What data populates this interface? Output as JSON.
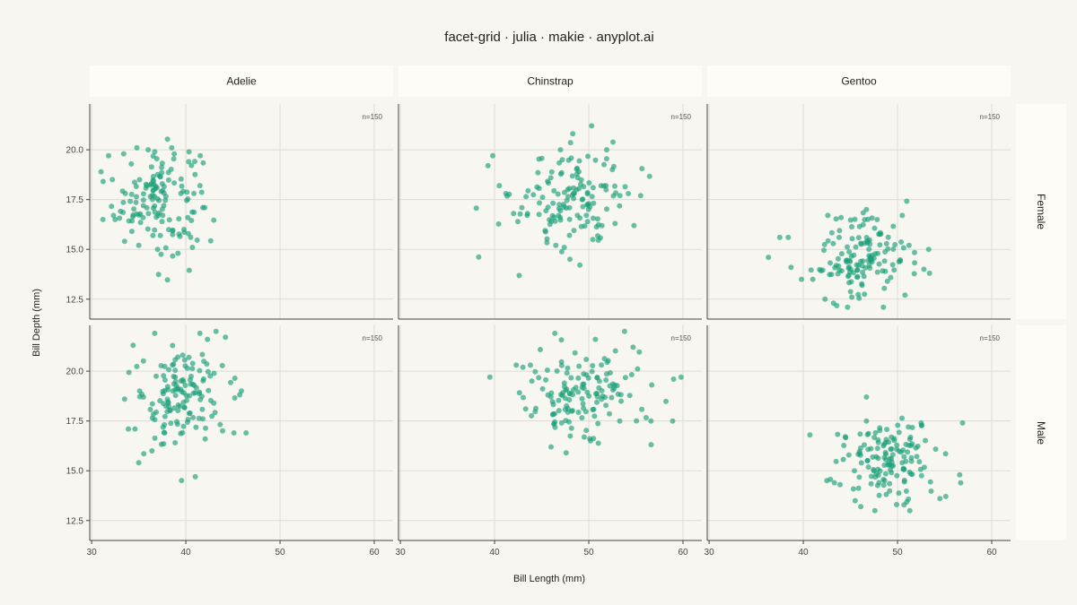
{
  "chart_data": {
    "type": "scatter",
    "title": "facet-grid · julia · makie · anyplot.ai",
    "xlabel": "Bill Length (mm)",
    "ylabel": "Bill Depth (mm)",
    "xlim": [
      29.8,
      62
    ],
    "ylim": [
      11.5,
      22.3
    ],
    "xticks": [
      30,
      40,
      50,
      60
    ],
    "yticks": [
      12.5,
      15.0,
      17.5,
      20.0
    ],
    "ytick_labels": [
      "12.5",
      "15.0",
      "17.5",
      "20.0"
    ],
    "grid": true,
    "point_color": "#1aa078",
    "columns": [
      "Adelie",
      "Chinstrap",
      "Gentoo"
    ],
    "rows": [
      "Female",
      "Male"
    ],
    "panels": [
      {
        "species": "Adelie",
        "sex": "Female",
        "n_label": "n=150",
        "center": [
          37.0,
          17.6
        ],
        "spread": [
          2.3,
          1.35
        ],
        "n": 150,
        "points": [
          [
            31.0,
            18.9
          ],
          [
            31.8,
            19.7
          ],
          [
            32.2,
            18.5
          ],
          [
            33.4,
            19.8
          ],
          [
            34.8,
            20.1
          ],
          [
            38.5,
            20.1
          ],
          [
            36.0,
            20.0
          ],
          [
            36.7,
            19.9
          ],
          [
            40.3,
            19.4
          ],
          [
            41.5,
            18.2
          ],
          [
            40.7,
            15.1
          ],
          [
            37.0,
            15.0
          ],
          [
            35.0,
            15.2
          ],
          [
            33.5,
            15.4
          ],
          [
            31.2,
            16.5
          ],
          [
            32.5,
            16.5
          ],
          [
            41.8,
            17.1
          ],
          [
            42.0,
            17.1
          ],
          [
            40.2,
            16.6
          ],
          [
            39.8,
            16.0
          ]
        ]
      },
      {
        "species": "Chinstrap",
        "sex": "Female",
        "n_label": "n=150",
        "center": [
          48.0,
          17.6
        ],
        "spread": [
          3.0,
          1.3
        ],
        "n": 150,
        "points": [
          [
            40.5,
            18.2
          ],
          [
            41.2,
            17.8
          ],
          [
            39.3,
            19.2
          ],
          [
            39.8,
            19.7
          ],
          [
            48.3,
            20.8
          ],
          [
            50.3,
            21.2
          ],
          [
            47.0,
            20.0
          ],
          [
            48.0,
            14.5
          ],
          [
            46.5,
            15.2
          ],
          [
            47.4,
            15.1
          ],
          [
            55.5,
            17.7
          ],
          [
            54.2,
            17.8
          ],
          [
            53.3,
            17.7
          ],
          [
            54.8,
            16.2
          ],
          [
            51.9,
            20.0
          ],
          [
            52.5,
            19.0
          ],
          [
            43.5,
            16.8
          ],
          [
            42.9,
            17.1
          ]
        ]
      },
      {
        "species": "Gentoo",
        "sex": "Female",
        "n_label": "n=150",
        "center": [
          46.5,
          14.6
        ],
        "spread": [
          2.4,
          1.1
        ],
        "n": 150,
        "points": [
          [
            36.3,
            14.6
          ],
          [
            37.5,
            15.6
          ],
          [
            38.4,
            15.6
          ],
          [
            38.7,
            14.1
          ],
          [
            39.8,
            13.5
          ],
          [
            41.0,
            13.5
          ],
          [
            42.6,
            16.7
          ],
          [
            44.0,
            16.6
          ],
          [
            46.7,
            17.0
          ],
          [
            50.5,
            16.7
          ],
          [
            53.3,
            15.0
          ],
          [
            52.8,
            14.0
          ],
          [
            53.4,
            13.8
          ],
          [
            50.8,
            12.7
          ],
          [
            48.5,
            12.1
          ],
          [
            44.7,
            12.1
          ],
          [
            43.2,
            12.3
          ],
          [
            42.3,
            12.5
          ]
        ]
      },
      {
        "species": "Adelie",
        "sex": "Male",
        "n_label": "n=150",
        "center": [
          39.3,
          18.7
        ],
        "spread": [
          2.3,
          1.25
        ],
        "n": 150,
        "points": [
          [
            33.5,
            18.6
          ],
          [
            34.4,
            21.3
          ],
          [
            36.7,
            21.9
          ],
          [
            41.5,
            21.9
          ],
          [
            42.3,
            21.6
          ],
          [
            43.2,
            22.0
          ],
          [
            44.2,
            21.7
          ],
          [
            45.9,
            19.0
          ],
          [
            46.4,
            16.9
          ],
          [
            45.1,
            16.9
          ],
          [
            43.9,
            17.0
          ],
          [
            41.0,
            14.7
          ],
          [
            36.4,
            16.0
          ],
          [
            35.0,
            15.4
          ],
          [
            33.9,
            17.1
          ],
          [
            34.6,
            17.1
          ]
        ]
      },
      {
        "species": "Chinstrap",
        "sex": "Male",
        "n_label": "n=150",
        "center": [
          49.4,
          19.0
        ],
        "spread": [
          3.0,
          1.25
        ],
        "n": 150,
        "points": [
          [
            39.5,
            19.7
          ],
          [
            42.3,
            20.3
          ],
          [
            43.0,
            20.2
          ],
          [
            43.8,
            20.3
          ],
          [
            46.4,
            21.9
          ],
          [
            50.7,
            21.6
          ],
          [
            53.8,
            22.0
          ],
          [
            54.7,
            21.2
          ],
          [
            58.9,
            17.5
          ],
          [
            59.8,
            19.7
          ],
          [
            56.6,
            17.5
          ],
          [
            46.0,
            16.2
          ],
          [
            47.6,
            15.9
          ],
          [
            50.2,
            16.5
          ],
          [
            43.3,
            18.1
          ],
          [
            59.0,
            19.6
          ]
        ]
      },
      {
        "species": "Gentoo",
        "sex": "Male",
        "n_label": "n=150",
        "center": [
          48.6,
          15.6
        ],
        "spread": [
          2.6,
          1.0
        ],
        "n": 150,
        "points": [
          [
            40.7,
            16.8
          ],
          [
            42.5,
            14.5
          ],
          [
            43.3,
            14.4
          ],
          [
            43.9,
            14.3
          ],
          [
            46.7,
            18.7
          ],
          [
            46.7,
            17.5
          ],
          [
            52.5,
            17.4
          ],
          [
            56.9,
            17.4
          ],
          [
            56.6,
            14.8
          ],
          [
            56.7,
            14.4
          ],
          [
            54.5,
            13.6
          ],
          [
            51.3,
            13.0
          ],
          [
            49.9,
            13.3
          ],
          [
            47.6,
            13.0
          ],
          [
            46.1,
            13.2
          ],
          [
            45.5,
            13.5
          ]
        ]
      }
    ]
  }
}
